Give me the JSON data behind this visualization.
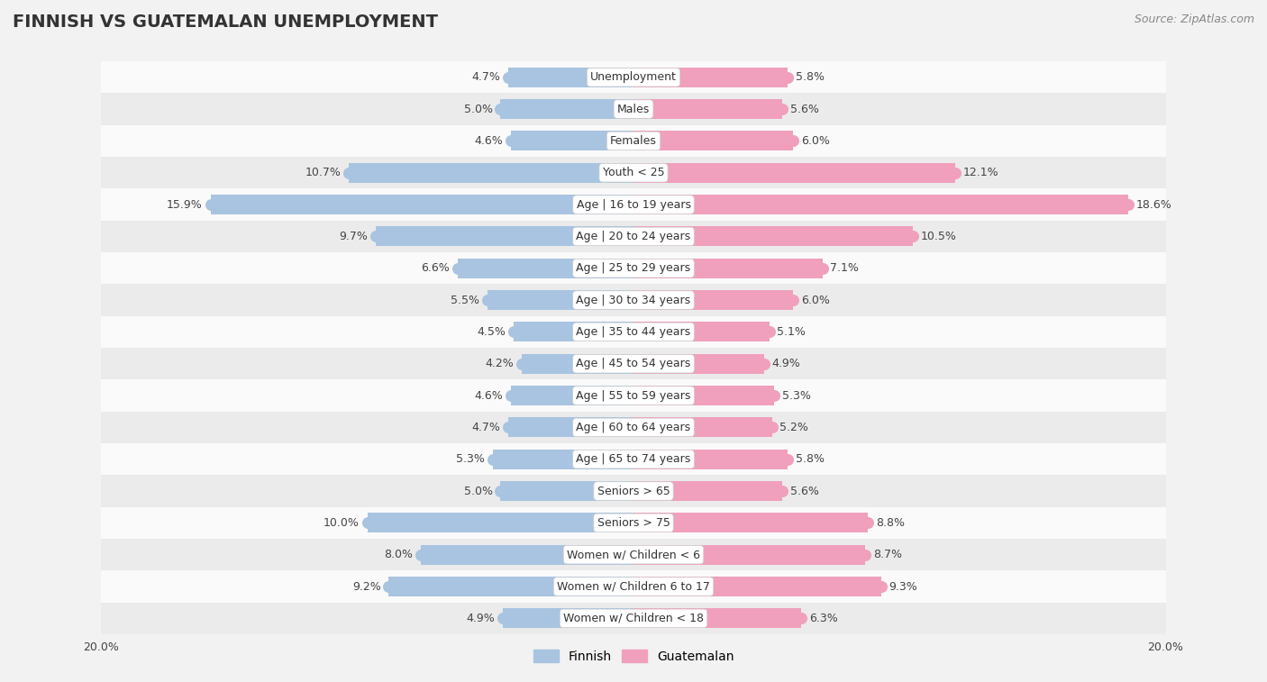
{
  "title": "FINNISH VS GUATEMALAN UNEMPLOYMENT",
  "source": "Source: ZipAtlas.com",
  "categories": [
    "Unemployment",
    "Males",
    "Females",
    "Youth < 25",
    "Age | 16 to 19 years",
    "Age | 20 to 24 years",
    "Age | 25 to 29 years",
    "Age | 30 to 34 years",
    "Age | 35 to 44 years",
    "Age | 45 to 54 years",
    "Age | 55 to 59 years",
    "Age | 60 to 64 years",
    "Age | 65 to 74 years",
    "Seniors > 65",
    "Seniors > 75",
    "Women w/ Children < 6",
    "Women w/ Children 6 to 17",
    "Women w/ Children < 18"
  ],
  "finnish_values": [
    4.7,
    5.0,
    4.6,
    10.7,
    15.9,
    9.7,
    6.6,
    5.5,
    4.5,
    4.2,
    4.6,
    4.7,
    5.3,
    5.0,
    10.0,
    8.0,
    9.2,
    4.9
  ],
  "guatemalan_values": [
    5.8,
    5.6,
    6.0,
    12.1,
    18.6,
    10.5,
    7.1,
    6.0,
    5.1,
    4.9,
    5.3,
    5.2,
    5.8,
    5.6,
    8.8,
    8.7,
    9.3,
    6.3
  ],
  "finnish_color": "#a8c4e0",
  "guatemalan_color": "#f0a0bc",
  "bg_color": "#f2f2f2",
  "row_light": "#fafafa",
  "row_dark": "#ebebeb",
  "max_value": 20.0,
  "bar_height": 0.62,
  "label_fontsize": 9.0,
  "title_fontsize": 14,
  "source_fontsize": 9,
  "legend_fontsize": 10,
  "value_fontsize": 9.0
}
